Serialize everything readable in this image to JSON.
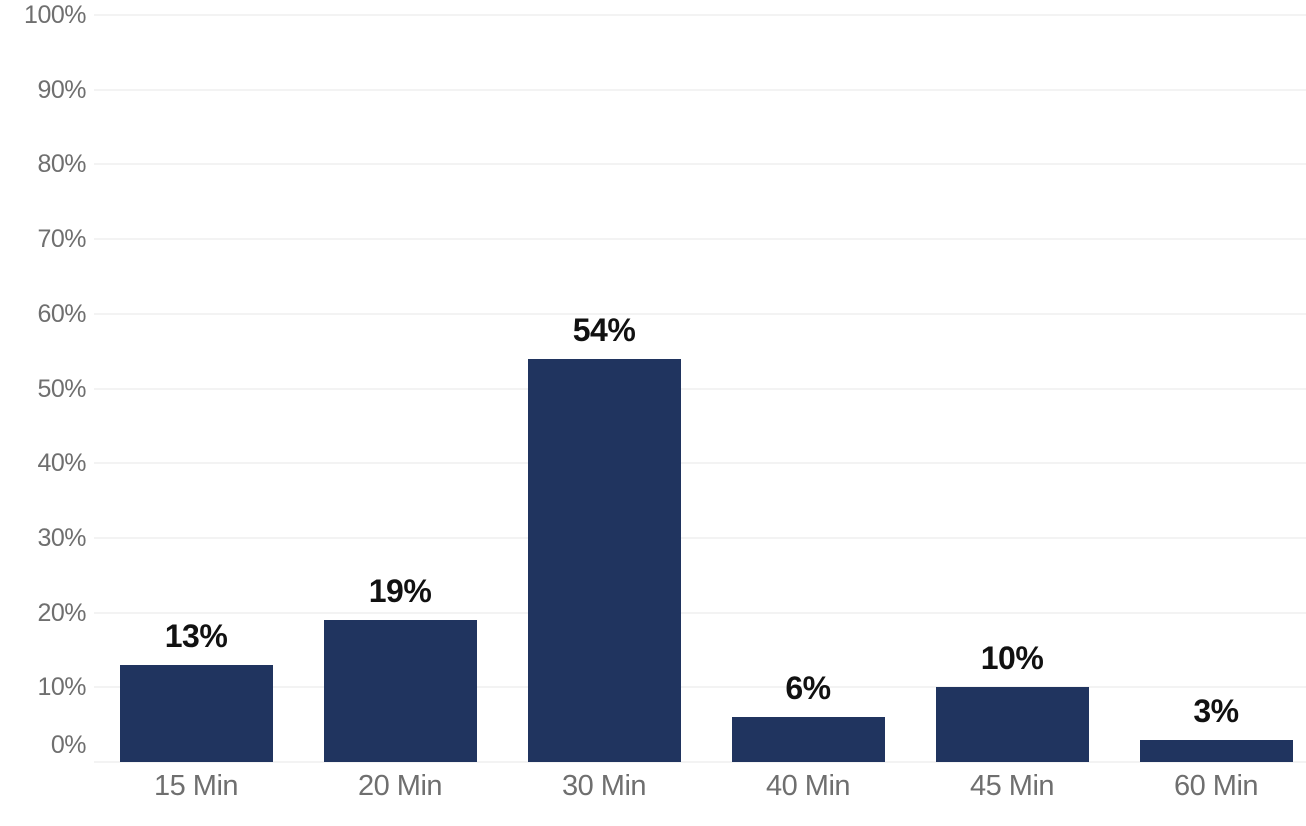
{
  "chart_data": {
    "type": "bar",
    "title": "",
    "xlabel": "",
    "ylabel": "",
    "categories": [
      "15 Min",
      "20 Min",
      "30 Min",
      "40 Min",
      "45 Min",
      "60 Min"
    ],
    "values": [
      13,
      19,
      54,
      6,
      10,
      3
    ],
    "data_labels": [
      "13%",
      "19%",
      "54%",
      "6%",
      "10%",
      "3%"
    ],
    "ylim": [
      0,
      100
    ],
    "y_tick_step": 10,
    "y_tick_labels": [
      "0%",
      "10%",
      "20%",
      "30%",
      "40%",
      "50%",
      "60%",
      "70%",
      "80%",
      "90%",
      "100%"
    ],
    "grid": "horizontal",
    "legend": "none",
    "colors": {
      "bar": "#20345f",
      "value_label": "#111111",
      "axis_label": "#6f6f6f",
      "gridline": "#f3f3f3",
      "background": "#ffffff"
    }
  }
}
